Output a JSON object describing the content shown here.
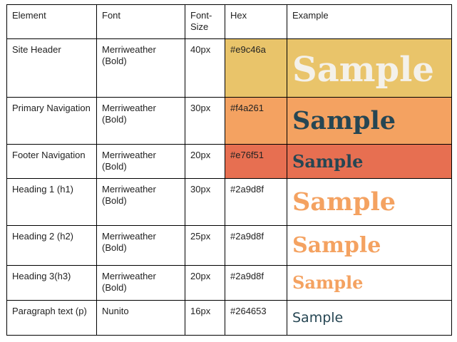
{
  "table": {
    "headers": [
      "Element",
      "Font",
      "Font-Size",
      "Hex",
      "Example"
    ],
    "rows": [
      {
        "element": "Site Header",
        "font": "Merriweather (Bold)",
        "size": "40px",
        "hex": "#e9c46a",
        "example": "Sample",
        "hex_bg": "#e9c46a",
        "example_bg": "#e9c46a",
        "example_color": "#f4f1ea"
      },
      {
        "element": "Primary Navigation",
        "font": "Merriweather (Bold)",
        "size": "30px",
        "hex": "#f4a261",
        "example": "Sample",
        "hex_bg": "#f4a261",
        "example_bg": "#f4a261",
        "example_color": "#264653"
      },
      {
        "element": "Footer Navigation",
        "font": "Merriweather (Bold)",
        "size": "20px",
        "hex": "#e76f51",
        "example": "Sample",
        "hex_bg": "#e76f51",
        "example_bg": "#e76f51",
        "example_color": "#264653"
      },
      {
        "element": "Heading 1 (h1)",
        "font": "Merriweather (Bold)",
        "size": "30px",
        "hex": "#2a9d8f",
        "example": "Sample",
        "hex_bg": "#ffffff",
        "example_bg": "#ffffff",
        "example_color": "#f4a261"
      },
      {
        "element": "Heading 2 (h2)",
        "font": "Merriweather (Bold)",
        "size": "25px",
        "hex": "#2a9d8f",
        "example": "Sample",
        "hex_bg": "#ffffff",
        "example_bg": "#ffffff",
        "example_color": "#f4a261"
      },
      {
        "element": "Heading 3(h3)",
        "font": "Merriweather (Bold)",
        "size": "20px",
        "hex": "#2a9d8f",
        "example": "Sample",
        "hex_bg": "#ffffff",
        "example_bg": "#ffffff",
        "example_color": "#f4a261"
      },
      {
        "element": "Paragraph text (p)",
        "font": "Nunito",
        "size": "16px",
        "hex": "#264653",
        "example": "Sample",
        "hex_bg": "#ffffff",
        "example_bg": "#ffffff",
        "example_color": "#264653"
      }
    ]
  }
}
